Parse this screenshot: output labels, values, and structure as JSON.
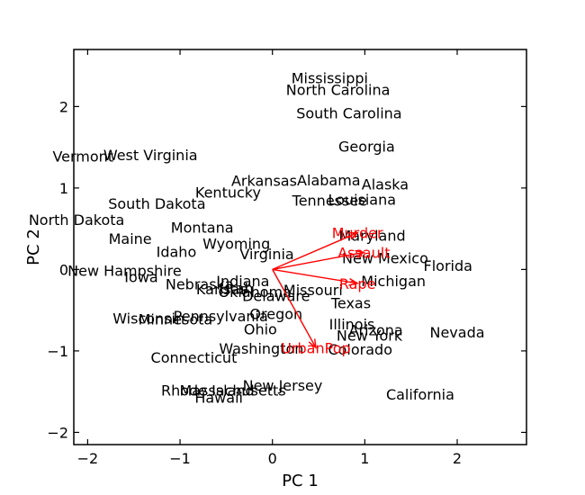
{
  "chart_data": {
    "type": "biplot",
    "title": "",
    "xlabel": "PC 1",
    "ylabel": "PC 2",
    "xlim": [
      -2.15,
      2.75
    ],
    "ylim": [
      -2.15,
      2.7
    ],
    "xticks": [
      -2,
      -1,
      0,
      1,
      2
    ],
    "yticks": [
      -2,
      -1,
      0,
      1,
      2
    ],
    "xtick_labels": [
      "−2",
      "−1",
      "0",
      "1",
      "2"
    ],
    "ytick_labels": [
      "−2",
      "−1",
      "0",
      "1",
      "2"
    ],
    "grid": false,
    "legend": "none",
    "colors": {
      "points": "#000000",
      "loadings": "#ff0000"
    },
    "points": [
      {
        "label": "Mississippi",
        "x": 0.62,
        "y": 2.35
      },
      {
        "label": "North Carolina",
        "x": 0.71,
        "y": 2.21
      },
      {
        "label": "South Carolina",
        "x": 0.83,
        "y": 1.92
      },
      {
        "label": "West Virginia",
        "x": -1.32,
        "y": 1.41
      },
      {
        "label": "Vermont",
        "x": -2.05,
        "y": 1.39
      },
      {
        "label": "Georgia",
        "x": 1.02,
        "y": 1.51
      },
      {
        "label": "Alabama",
        "x": 0.61,
        "y": 1.1
      },
      {
        "label": "Arkansas",
        "x": -0.09,
        "y": 1.09
      },
      {
        "label": "Alaska",
        "x": 1.22,
        "y": 1.05
      },
      {
        "label": "Kentucky",
        "x": -0.48,
        "y": 0.95
      },
      {
        "label": "Tennessee",
        "x": 0.62,
        "y": 0.85
      },
      {
        "label": "Louisiana",
        "x": 0.97,
        "y": 0.86
      },
      {
        "label": "South Dakota",
        "x": -1.25,
        "y": 0.81
      },
      {
        "label": "North Dakota",
        "x": -2.12,
        "y": 0.61
      },
      {
        "label": "Montana",
        "x": -0.76,
        "y": 0.52
      },
      {
        "label": "Maryland",
        "x": 1.08,
        "y": 0.42
      },
      {
        "label": "Murder",
        "x": 0.92,
        "y": 0.45
      },
      {
        "label": "Maine",
        "x": -1.54,
        "y": 0.38
      },
      {
        "label": "Wyoming",
        "x": -0.39,
        "y": 0.32
      },
      {
        "label": "Idaho",
        "x": -1.04,
        "y": 0.22
      },
      {
        "label": "Virginia",
        "x": -0.06,
        "y": 0.19
      },
      {
        "label": "Assault",
        "x": 0.99,
        "y": 0.21
      },
      {
        "label": "New Mexico",
        "x": 1.22,
        "y": 0.14
      },
      {
        "label": "Florida",
        "x": 1.9,
        "y": 0.05
      },
      {
        "label": "New Hampshire",
        "x": -1.6,
        "y": -0.01
      },
      {
        "label": "Iowa",
        "x": -1.42,
        "y": -0.09
      },
      {
        "label": "Michigan",
        "x": 1.31,
        "y": -0.14
      },
      {
        "label": "Indiana",
        "x": -0.32,
        "y": -0.14
      },
      {
        "label": "Nebraska",
        "x": -0.79,
        "y": -0.18
      },
      {
        "label": "Rape",
        "x": 0.92,
        "y": -0.17
      },
      {
        "label": "Kansas",
        "x": -0.55,
        "y": -0.24
      },
      {
        "label": "Utah",
        "x": -0.39,
        "y": -0.23
      },
      {
        "label": "Oklahoma",
        "x": -0.19,
        "y": -0.27
      },
      {
        "label": "Delaware",
        "x": 0.04,
        "y": -0.32
      },
      {
        "label": "Missouri",
        "x": 0.44,
        "y": -0.25
      },
      {
        "label": "Texas",
        "x": 0.85,
        "y": -0.41
      },
      {
        "label": "Oregon",
        "x": 0.04,
        "y": -0.54
      },
      {
        "label": "Pennsylvania",
        "x": -0.56,
        "y": -0.57
      },
      {
        "label": "Wisconsin",
        "x": -1.34,
        "y": -0.6
      },
      {
        "label": "Minnesota",
        "x": -1.05,
        "y": -0.61
      },
      {
        "label": "Illinois",
        "x": 0.86,
        "y": -0.67
      },
      {
        "label": "Ohio",
        "x": -0.13,
        "y": -0.73
      },
      {
        "label": "Arizona",
        "x": 1.12,
        "y": -0.74
      },
      {
        "label": "Nevada",
        "x": 2.0,
        "y": -0.77
      },
      {
        "label": "New York",
        "x": 1.05,
        "y": -0.81
      },
      {
        "label": "Washington",
        "x": -0.12,
        "y": -0.97
      },
      {
        "label": "UrbanPop",
        "x": 0.47,
        "y": -0.96
      },
      {
        "label": "Colorado",
        "x": 0.95,
        "y": -0.98
      },
      {
        "label": "Connecticut",
        "x": -0.85,
        "y": -1.08
      },
      {
        "label": "New Jersey",
        "x": 0.11,
        "y": -1.42
      },
      {
        "label": "Massachusetts",
        "x": -0.43,
        "y": -1.48
      },
      {
        "label": "Rhode Island",
        "x": -0.7,
        "y": -1.48
      },
      {
        "label": "Hawaii",
        "x": -0.58,
        "y": -1.57
      },
      {
        "label": "California",
        "x": 1.6,
        "y": -1.53
      }
    ],
    "loadings": [
      {
        "label": "Murder",
        "x": 0.92,
        "y": 0.45
      },
      {
        "label": "Assault",
        "x": 0.99,
        "y": 0.21
      },
      {
        "label": "Rape",
        "x": 0.92,
        "y": -0.17
      },
      {
        "label": "UrbanPop",
        "x": 0.47,
        "y": -0.96
      }
    ]
  }
}
